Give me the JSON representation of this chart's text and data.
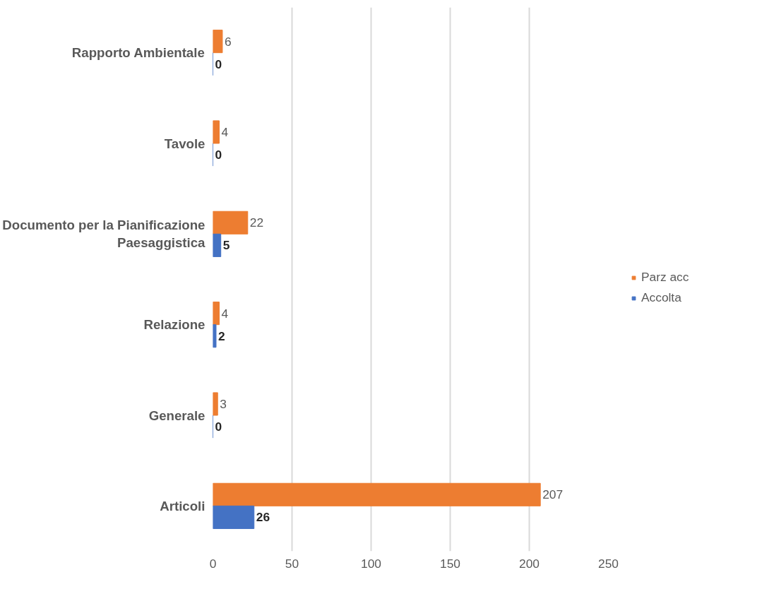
{
  "chart_data": {
    "type": "bar",
    "orientation": "horizontal",
    "categories": [
      "Rapporto Ambientale",
      "Tavole",
      "Documento per la Pianificazione Paesaggistica",
      "Relazione",
      "Generale",
      "Articoli"
    ],
    "series": [
      {
        "name": "Parz acc",
        "color": "#ed7d31",
        "values": [
          6,
          4,
          22,
          4,
          3,
          207
        ]
      },
      {
        "name": "Accolta",
        "color": "#4472c4",
        "values": [
          0,
          0,
          5,
          2,
          0,
          26
        ]
      }
    ],
    "xlim": [
      0,
      250
    ],
    "xticks": [
      0,
      50,
      100,
      150,
      200,
      250
    ],
    "grid": "x",
    "legend": "right",
    "data_labels": true
  }
}
